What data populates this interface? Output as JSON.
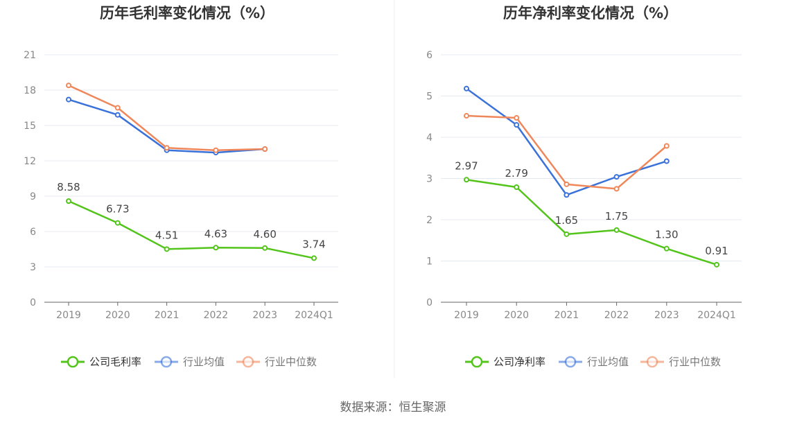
{
  "source_text": "数据来源：恒生聚源",
  "colors": {
    "company": "#52c41a",
    "industry_avg": "#3b72d9",
    "industry_median": "#f0875a",
    "grid": "#e4e8f0",
    "axis": "#666666"
  },
  "chart_data": [
    {
      "type": "line",
      "title": "历年毛利率变化情况（%）",
      "categories": [
        "2019",
        "2020",
        "2021",
        "2022",
        "2023",
        "2024Q1"
      ],
      "ylim": [
        0,
        21
      ],
      "yticks": [
        0,
        3,
        6,
        9,
        12,
        15,
        18,
        21
      ],
      "grid": true,
      "legend_position": "bottom",
      "series": [
        {
          "name": "公司毛利率",
          "values": [
            8.58,
            6.73,
            4.51,
            4.63,
            4.6,
            3.74
          ],
          "labels": [
            "8.58",
            "6.73",
            "4.51",
            "4.63",
            "4.60",
            "3.74"
          ],
          "color": "#52c41a"
        },
        {
          "name": "行业均值",
          "values": [
            17.2,
            15.9,
            12.9,
            12.7,
            13.0,
            null
          ],
          "color": "#3b72d9"
        },
        {
          "name": "行业中位数",
          "values": [
            18.4,
            16.5,
            13.1,
            12.9,
            13.0,
            null
          ],
          "color": "#f0875a"
        }
      ]
    },
    {
      "type": "line",
      "title": "历年净利率变化情况（%）",
      "categories": [
        "2019",
        "2020",
        "2021",
        "2022",
        "2023",
        "2024Q1"
      ],
      "ylim": [
        0,
        6
      ],
      "yticks": [
        0,
        1,
        2,
        3,
        4,
        5,
        6
      ],
      "grid": true,
      "legend_position": "bottom",
      "series": [
        {
          "name": "公司净利率",
          "values": [
            2.97,
            2.79,
            1.65,
            1.75,
            1.3,
            0.91
          ],
          "labels": [
            "2.97",
            "2.79",
            "1.65",
            "1.75",
            "1.30",
            "0.91"
          ],
          "color": "#52c41a"
        },
        {
          "name": "行业均值",
          "values": [
            5.18,
            4.3,
            2.6,
            3.04,
            3.42,
            null
          ],
          "color": "#3b72d9"
        },
        {
          "name": "行业中位数",
          "values": [
            4.52,
            4.47,
            2.86,
            2.75,
            3.79,
            null
          ],
          "color": "#f0875a"
        }
      ]
    }
  ]
}
